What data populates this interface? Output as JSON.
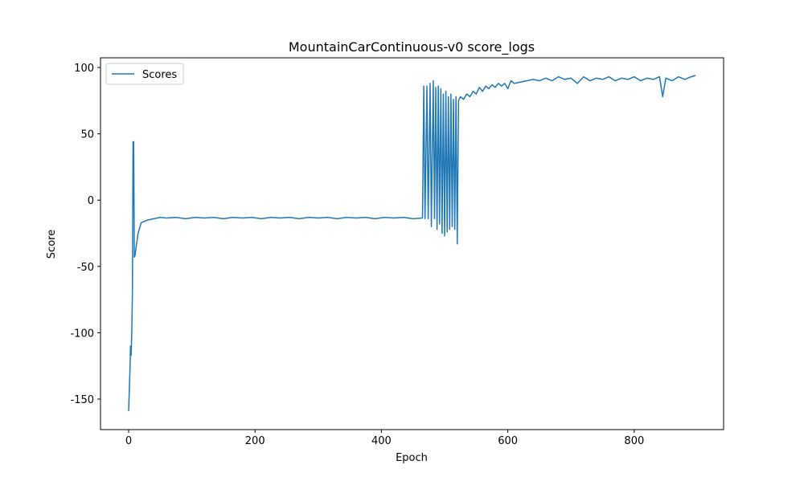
{
  "chart_data": {
    "type": "line",
    "title": "MountainCarContinuous-v0 score_logs",
    "x_label": "Epoch",
    "y_label": "Score",
    "x": [
      0,
      2,
      3,
      4,
      5,
      6,
      7,
      8,
      9,
      10,
      12,
      15,
      18,
      20,
      25,
      30,
      40,
      50,
      60,
      75,
      90,
      105,
      120,
      135,
      150,
      165,
      180,
      195,
      210,
      225,
      240,
      255,
      270,
      285,
      300,
      315,
      330,
      345,
      360,
      375,
      390,
      405,
      420,
      435,
      450,
      465,
      467,
      469,
      472,
      474,
      477,
      479,
      482,
      484,
      486,
      488,
      490,
      492,
      494,
      496,
      498,
      500,
      502,
      504,
      506,
      508,
      510,
      512,
      514,
      516,
      518,
      520,
      522,
      525,
      530,
      535,
      540,
      545,
      550,
      555,
      560,
      565,
      570,
      575,
      580,
      585,
      590,
      595,
      600,
      605,
      610,
      620,
      630,
      640,
      650,
      660,
      670,
      680,
      690,
      700,
      710,
      720,
      730,
      740,
      750,
      760,
      770,
      780,
      790,
      800,
      810,
      820,
      830,
      840,
      845,
      850,
      860,
      870,
      880,
      890,
      897
    ],
    "series": [
      {
        "name": "Scores",
        "color": "#1f77b4",
        "values": [
          -159,
          -130,
          -110,
          -117,
          -100,
          -70,
          44,
          44,
          -43,
          -42,
          -35,
          -25,
          -20,
          -17,
          -16,
          -15,
          -14,
          -13,
          -13.5,
          -13,
          -14,
          -13,
          -13.5,
          -13,
          -14,
          -13,
          -13.5,
          -13,
          -14,
          -13,
          -13.5,
          -13,
          -14,
          -13,
          -13.5,
          -13,
          -14,
          -13,
          -13.5,
          -13,
          -14,
          -13,
          -13.5,
          -13,
          -14,
          -13.5,
          86,
          -14,
          86,
          -14,
          88,
          -20,
          90,
          -14,
          85,
          -22,
          86,
          -18,
          84,
          -25,
          80,
          -27,
          82,
          -24,
          78,
          -22,
          80,
          -20,
          76,
          -22,
          78,
          -33,
          75,
          78,
          76,
          80,
          78,
          82,
          80,
          85,
          82,
          86,
          84,
          87,
          85,
          88,
          86,
          88,
          84,
          90,
          88,
          89,
          90,
          91,
          90,
          92,
          90,
          93,
          91,
          92,
          88,
          93,
          90,
          92,
          91,
          93,
          90,
          92,
          91,
          93,
          90,
          92,
          91,
          93,
          78,
          92,
          90,
          93,
          91,
          93,
          94
        ]
      }
    ],
    "xlim": [
      -44.5,
      941.4
    ],
    "ylim": [
      -173,
      107.3
    ],
    "xticks": [
      0,
      200,
      400,
      600,
      800
    ],
    "yticks": [
      -150,
      -100,
      -50,
      0,
      50,
      100
    ],
    "legend": "upper left"
  }
}
